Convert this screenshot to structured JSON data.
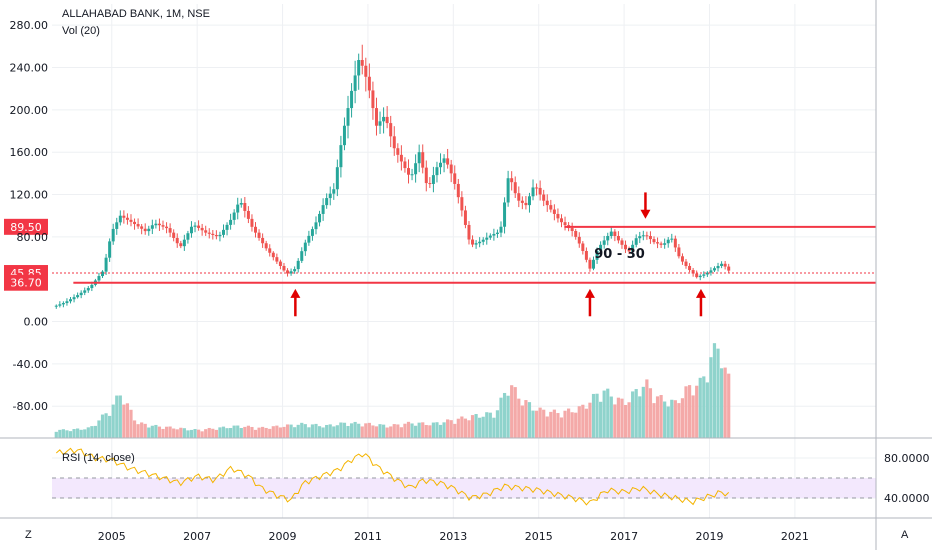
{
  "chart_data": {
    "type": "candlestick",
    "title": "ALLAHABAD BANK, 1M, NSE",
    "volume_label": "Vol (20)",
    "rsi_label": "RSI (14, close)",
    "annotation": "90 - 30",
    "price_axis_ticks": [
      "280.00",
      "240.00",
      "200.00",
      "160.00",
      "120.00",
      "80.00",
      "0.00",
      "-40.00",
      "-80.00"
    ],
    "rsi_axis_ticks": [
      "80.0000",
      "40.0000"
    ],
    "x_ticks": [
      "2005",
      "2007",
      "2009",
      "2011",
      "2013",
      "2015",
      "2017",
      "2019",
      "2021"
    ],
    "x_range": [
      2003.6,
      2022.9
    ],
    "price_range": [
      -110,
      300
    ],
    "rsi_range": [
      20,
      100
    ],
    "rsi_band": [
      40,
      60
    ],
    "horizontal_lines": [
      {
        "label": "89.50",
        "value": 89.5,
        "color": "#f23645",
        "style": "solid",
        "from": 2015.6
      },
      {
        "label": "45.85",
        "value": 45.85,
        "color": "#f23645",
        "style": "dotted",
        "from": 2003.6
      },
      {
        "label": "36.70",
        "value": 36.7,
        "color": "#f23645",
        "style": "solid",
        "from": 2004.1
      }
    ],
    "arrows": [
      {
        "x": 2009.3,
        "direction": "up"
      },
      {
        "x": 2016.2,
        "direction": "up"
      },
      {
        "x": 2017.5,
        "direction": "down"
      },
      {
        "x": 2018.8,
        "direction": "up"
      }
    ],
    "price_points": [
      [
        2003.7,
        15
      ],
      [
        2003.9,
        18
      ],
      [
        2004.2,
        25
      ],
      [
        2004.5,
        33
      ],
      [
        2004.8,
        48
      ],
      [
        2005.0,
        85
      ],
      [
        2005.2,
        100
      ],
      [
        2005.5,
        93
      ],
      [
        2005.8,
        85
      ],
      [
        2006.0,
        93
      ],
      [
        2006.3,
        88
      ],
      [
        2006.6,
        70
      ],
      [
        2006.9,
        92
      ],
      [
        2007.2,
        84
      ],
      [
        2007.5,
        80
      ],
      [
        2007.8,
        97
      ],
      [
        2008.0,
        115
      ],
      [
        2008.3,
        88
      ],
      [
        2008.6,
        70
      ],
      [
        2008.9,
        55
      ],
      [
        2009.1,
        45
      ],
      [
        2009.3,
        50
      ],
      [
        2009.5,
        72
      ],
      [
        2009.8,
        95
      ],
      [
        2010.0,
        115
      ],
      [
        2010.2,
        125
      ],
      [
        2010.4,
        175
      ],
      [
        2010.6,
        215
      ],
      [
        2010.8,
        250
      ],
      [
        2011.0,
        225
      ],
      [
        2011.2,
        185
      ],
      [
        2011.4,
        195
      ],
      [
        2011.6,
        165
      ],
      [
        2011.8,
        150
      ],
      [
        2012.0,
        135
      ],
      [
        2012.2,
        160
      ],
      [
        2012.4,
        125
      ],
      [
        2012.6,
        145
      ],
      [
        2012.8,
        155
      ],
      [
        2013.0,
        135
      ],
      [
        2013.2,
        105
      ],
      [
        2013.4,
        72
      ],
      [
        2013.6,
        75
      ],
      [
        2013.9,
        82
      ],
      [
        2014.1,
        85
      ],
      [
        2014.3,
        140
      ],
      [
        2014.5,
        115
      ],
      [
        2014.7,
        110
      ],
      [
        2014.9,
        130
      ],
      [
        2015.1,
        115
      ],
      [
        2015.3,
        105
      ],
      [
        2015.5,
        95
      ],
      [
        2015.8,
        85
      ],
      [
        2016.0,
        70
      ],
      [
        2016.2,
        50
      ],
      [
        2016.4,
        70
      ],
      [
        2016.7,
        85
      ],
      [
        2016.9,
        75
      ],
      [
        2017.1,
        65
      ],
      [
        2017.3,
        80
      ],
      [
        2017.5,
        82
      ],
      [
        2017.7,
        75
      ],
      [
        2017.9,
        72
      ],
      [
        2018.1,
        80
      ],
      [
        2018.3,
        60
      ],
      [
        2018.5,
        50
      ],
      [
        2018.7,
        42
      ],
      [
        2018.9,
        45
      ],
      [
        2019.1,
        50
      ],
      [
        2019.3,
        55
      ],
      [
        2019.5,
        45.85
      ]
    ],
    "volume_points": [
      [
        2004.0,
        8
      ],
      [
        2004.5,
        10
      ],
      [
        2005.0,
        30
      ],
      [
        2005.2,
        45
      ],
      [
        2005.6,
        15
      ],
      [
        2006.0,
        12
      ],
      [
        2006.5,
        10
      ],
      [
        2007.0,
        8
      ],
      [
        2007.5,
        10
      ],
      [
        2008.0,
        12
      ],
      [
        2008.5,
        10
      ],
      [
        2009.0,
        12
      ],
      [
        2009.5,
        14
      ],
      [
        2010.0,
        12
      ],
      [
        2010.5,
        15
      ],
      [
        2011.0,
        14
      ],
      [
        2011.5,
        12
      ],
      [
        2012.0,
        15
      ],
      [
        2012.5,
        14
      ],
      [
        2013.0,
        18
      ],
      [
        2013.5,
        22
      ],
      [
        2014.0,
        25
      ],
      [
        2014.3,
        55
      ],
      [
        2014.6,
        38
      ],
      [
        2015.0,
        28
      ],
      [
        2015.5,
        25
      ],
      [
        2016.0,
        30
      ],
      [
        2016.5,
        48
      ],
      [
        2016.8,
        40
      ],
      [
        2017.0,
        35
      ],
      [
        2017.5,
        55
      ],
      [
        2017.8,
        40
      ],
      [
        2018.2,
        35
      ],
      [
        2018.5,
        50
      ],
      [
        2018.8,
        55
      ],
      [
        2019.0,
        75
      ],
      [
        2019.2,
        95
      ],
      [
        2019.4,
        60
      ]
    ],
    "rsi_points": [
      [
        2003.7,
        85
      ],
      [
        2004.2,
        88
      ],
      [
        2004.6,
        80
      ],
      [
        2005.0,
        78
      ],
      [
        2005.4,
        70
      ],
      [
        2005.8,
        65
      ],
      [
        2006.2,
        60
      ],
      [
        2006.6,
        55
      ],
      [
        2007.0,
        62
      ],
      [
        2007.4,
        58
      ],
      [
        2007.8,
        70
      ],
      [
        2008.2,
        62
      ],
      [
        2008.5,
        50
      ],
      [
        2008.9,
        42
      ],
      [
        2009.2,
        38
      ],
      [
        2009.5,
        55
      ],
      [
        2009.9,
        62
      ],
      [
        2010.3,
        68
      ],
      [
        2010.6,
        78
      ],
      [
        2010.9,
        85
      ],
      [
        2011.2,
        72
      ],
      [
        2011.6,
        60
      ],
      [
        2012.0,
        50
      ],
      [
        2012.3,
        58
      ],
      [
        2012.7,
        55
      ],
      [
        2013.0,
        50
      ],
      [
        2013.4,
        40
      ],
      [
        2013.8,
        44
      ],
      [
        2014.2,
        52
      ],
      [
        2014.6,
        50
      ],
      [
        2015.0,
        48
      ],
      [
        2015.4,
        44
      ],
      [
        2015.8,
        40
      ],
      [
        2016.2,
        35
      ],
      [
        2016.6,
        48
      ],
      [
        2017.0,
        46
      ],
      [
        2017.4,
        50
      ],
      [
        2017.8,
        44
      ],
      [
        2018.2,
        40
      ],
      [
        2018.6,
        36
      ],
      [
        2019.0,
        42
      ],
      [
        2019.3,
        46
      ],
      [
        2019.5,
        42
      ]
    ]
  },
  "ui": {
    "bottom_left_icon": "Z",
    "bottom_right_icon": "A"
  }
}
